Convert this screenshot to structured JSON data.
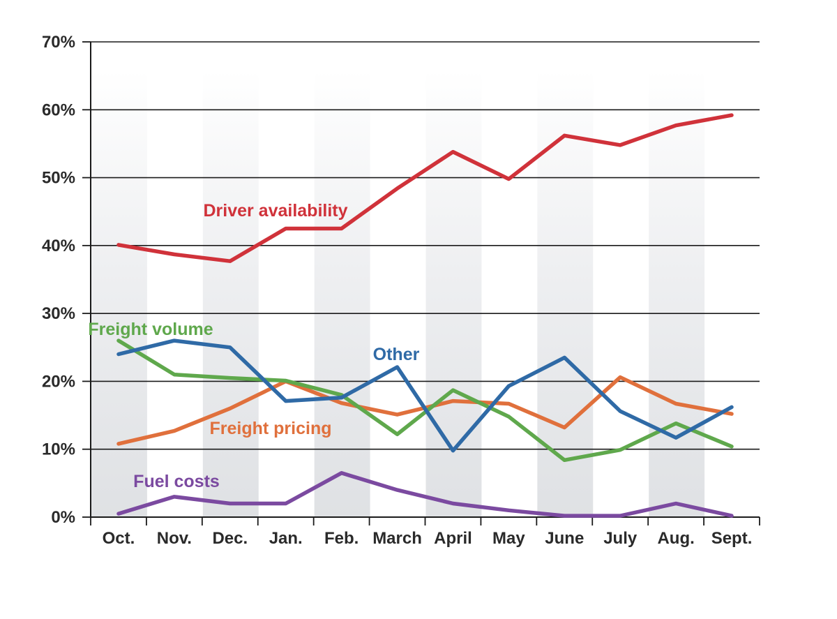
{
  "chart_data": {
    "type": "line",
    "categories": [
      "Oct.",
      "Nov.",
      "Dec.",
      "Jan.",
      "Feb.",
      "March",
      "April",
      "May",
      "June",
      "July",
      "Aug.",
      "Sept."
    ],
    "ylim": [
      0,
      70
    ],
    "yticks": [
      0,
      10,
      20,
      30,
      40,
      50,
      60,
      70
    ],
    "ytick_labels": [
      "0%",
      "10%",
      "20%",
      "30%",
      "40%",
      "50%",
      "60%",
      "70%"
    ],
    "grid": true,
    "alternating_bands": true,
    "series": [
      {
        "name": "Driver availability",
        "color": "#d0323a",
        "values": [
          40.1,
          38.7,
          37.7,
          42.5,
          42.5,
          48.4,
          53.8,
          49.8,
          56.2,
          54.8,
          57.7,
          59.2
        ]
      },
      {
        "name": "Freight volume",
        "color": "#5fa84c",
        "values": [
          26.0,
          21.0,
          20.5,
          20.1,
          18.0,
          12.2,
          18.7,
          14.8,
          8.4,
          9.9,
          13.8,
          10.4
        ]
      },
      {
        "name": "Other",
        "color": "#2f6aa6",
        "values": [
          24.0,
          26.0,
          25.0,
          17.1,
          17.6,
          22.1,
          9.8,
          19.3,
          23.5,
          15.6,
          11.7,
          16.2
        ]
      },
      {
        "name": "Freight pricing",
        "color": "#e0703c",
        "values": [
          10.8,
          12.7,
          16.0,
          20.0,
          16.8,
          15.1,
          17.1,
          16.7,
          13.2,
          20.6,
          16.7,
          15.2
        ]
      },
      {
        "name": "Fuel costs",
        "color": "#7b4aa0",
        "values": [
          0.5,
          3.0,
          2.0,
          2.0,
          6.5,
          4.0,
          2.0,
          1.0,
          0.2,
          0.2,
          2.0,
          0.2
        ]
      }
    ]
  }
}
